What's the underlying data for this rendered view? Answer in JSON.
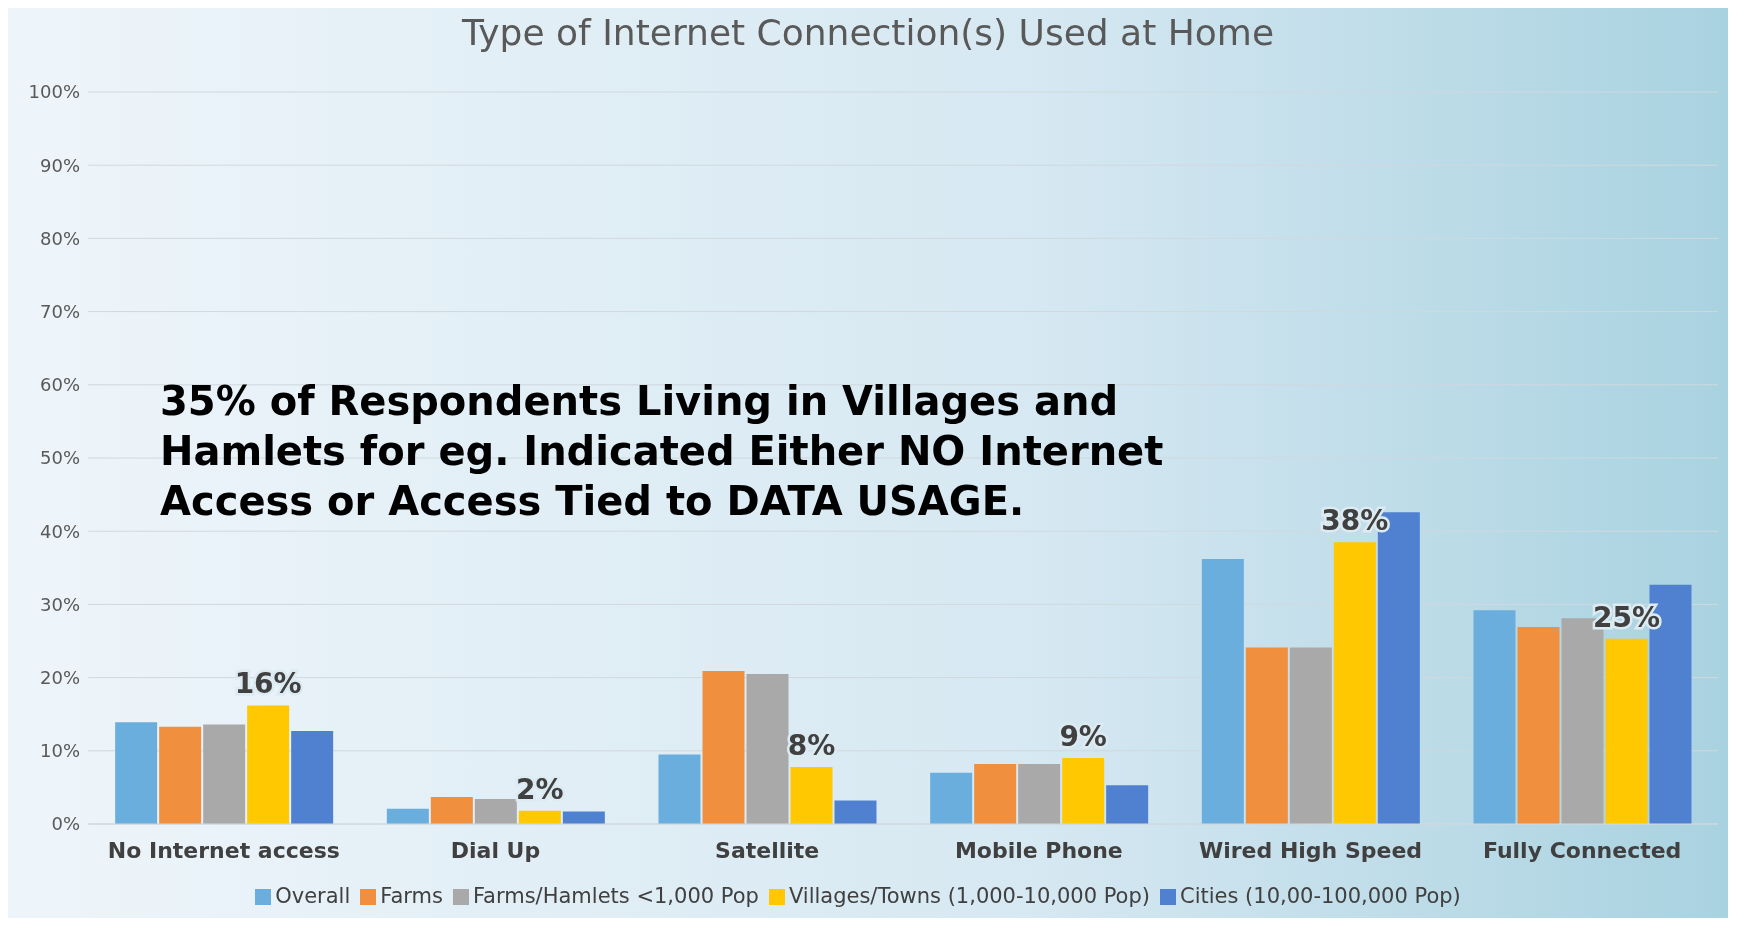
{
  "chart_data": {
    "type": "bar",
    "title": "Type of Internet Connection(s) Used at Home",
    "categories": [
      "No Internet access",
      "Dial Up",
      "Satellite",
      "Mobile Phone",
      "Wired High Speed",
      "Fully Connected"
    ],
    "series": [
      {
        "name": "Overall",
        "color": "#6aaedd",
        "values": [
          13.9,
          2.1,
          9.5,
          7.0,
          36.2,
          29.2
        ]
      },
      {
        "name": "Farms",
        "color": "#f08f3e",
        "values": [
          13.3,
          3.7,
          20.9,
          8.2,
          24.1,
          26.9
        ]
      },
      {
        "name": "Farms/Hamlets <1,000 Pop",
        "color": "#a9a9a9",
        "values": [
          13.6,
          3.4,
          20.5,
          8.2,
          24.1,
          28.1
        ]
      },
      {
        "name": "Villages/Towns (1,000-10,000 Pop)",
        "color": "#ffc800",
        "values": [
          16.2,
          1.8,
          7.8,
          9.0,
          38.5,
          25.3
        ],
        "value_labels": [
          "16%",
          "2%",
          "8%",
          "9%",
          "38%",
          "25%"
        ]
      },
      {
        "name": "Cities (10,00-100,000 Pop)",
        "color": "#4f81d0",
        "values": [
          12.7,
          1.7,
          3.2,
          5.3,
          42.6,
          32.7
        ]
      }
    ],
    "ylim": [
      0,
      100
    ],
    "yticks": [
      {
        "value": 0,
        "label": "0%"
      },
      {
        "value": 10,
        "label": "10%"
      },
      {
        "value": 20,
        "label": "20%"
      },
      {
        "value": 30,
        "label": "30%"
      },
      {
        "value": 40,
        "label": "40%"
      },
      {
        "value": 50,
        "label": "50%"
      },
      {
        "value": 60,
        "label": "60%"
      },
      {
        "value": 70,
        "label": "70%"
      },
      {
        "value": 80,
        "label": "80%"
      },
      {
        "value": 90,
        "label": "90%"
      },
      {
        "value": 100,
        "label": "100%"
      }
    ],
    "grid": "y",
    "legend": "bottom",
    "annotations": [
      "35% of Respondents Living in Villages and Hamlets for eg. Indicated Either NO Internet Access or Access Tied to DATA USAGE."
    ]
  }
}
